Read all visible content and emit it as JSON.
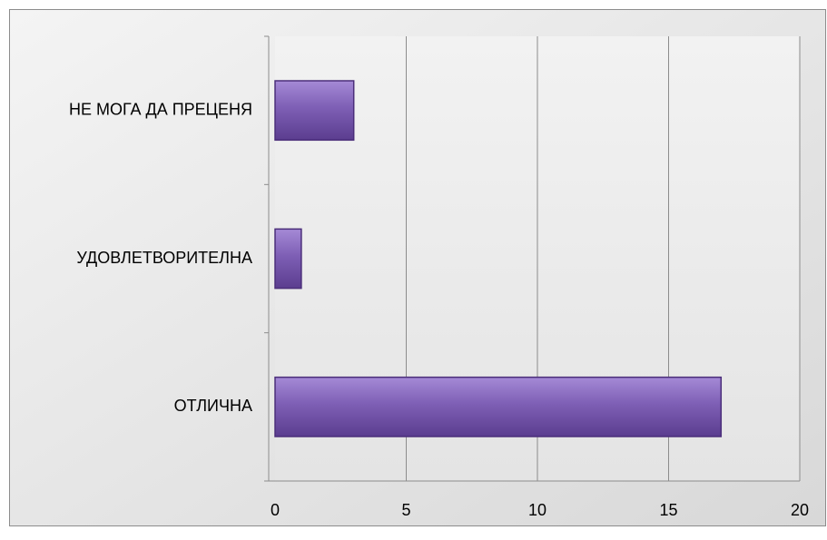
{
  "chart_data": {
    "type": "barh",
    "categories": [
      "ОТЛИЧНА",
      "УДОВЛЕТВОРИТЕЛНА",
      "НЕ МОГА ДА ПРЕЦЕНЯ"
    ],
    "values": [
      17,
      1,
      3
    ],
    "color": "#7e5fb5",
    "xlim": [
      0,
      20
    ],
    "xticks": [
      0,
      5,
      10,
      15,
      20
    ],
    "grid": true
  }
}
